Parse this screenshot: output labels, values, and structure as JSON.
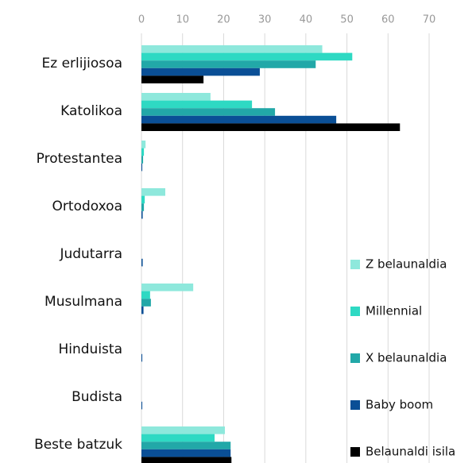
{
  "chart_data": {
    "type": "bar",
    "orientation": "horizontal",
    "categories": [
      "Ez erlijiosoa",
      "Katolikoa",
      "Protestantea",
      "Ortodoxoa",
      "Judutarra",
      "Musulmana",
      "Hinduista",
      "Budista",
      "Beste batzuk"
    ],
    "series": [
      {
        "name": "Z belaunaldia",
        "color": "#8ee8dc",
        "values": [
          44,
          16.8,
          1,
          5.8,
          0,
          12.6,
          0,
          0,
          20.3
        ]
      },
      {
        "name": "Millennial",
        "color": "#2ed9c3",
        "values": [
          51.3,
          26.9,
          0.6,
          0.8,
          0,
          2.1,
          0,
          0,
          17.8
        ]
      },
      {
        "name": "X belaunaldia",
        "color": "#22a8a8",
        "values": [
          42.4,
          32.5,
          0.4,
          0.6,
          0,
          2.3,
          0,
          0,
          21.7
        ]
      },
      {
        "name": "Baby boom",
        "color": "#0a4f96",
        "values": [
          28.8,
          47.4,
          0.2,
          0.3,
          0.3,
          0.5,
          0.2,
          0.2,
          21.7
        ]
      },
      {
        "name": "Belaunaldi isila",
        "color": "#000000",
        "values": [
          15.1,
          62.9,
          0,
          0,
          0,
          0,
          0,
          0,
          21.9
        ]
      }
    ],
    "xlim": [
      0,
      70
    ],
    "xticks": [
      0,
      10,
      20,
      30,
      40,
      50,
      60,
      70
    ],
    "grid": true,
    "legend": "right"
  }
}
